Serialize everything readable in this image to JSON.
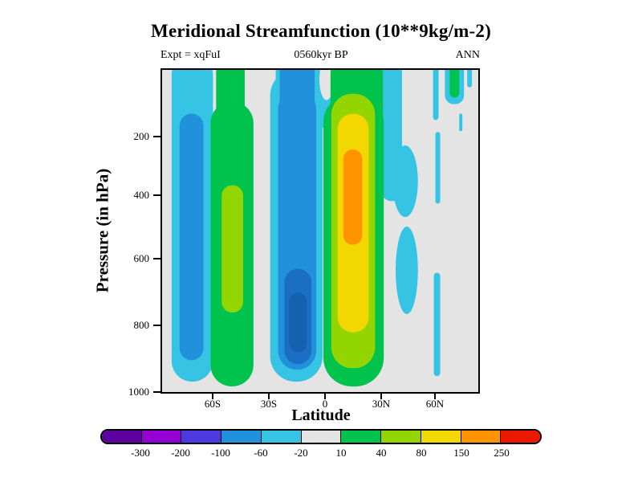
{
  "chart_data": {
    "type": "heatmap",
    "title": "Meridional Streamfunction (10**9kg/m-2)",
    "annotations": {
      "left": "Expt = xqFuI",
      "center": "0560kyr BP",
      "right": "ANN"
    },
    "xlabel": "Latitude",
    "ylabel": "Pressure (in hPa)",
    "x_ticks": [
      "60S",
      "30S",
      "0",
      "30N",
      "60N"
    ],
    "y_ticks": [
      "200",
      "400",
      "600",
      "800",
      "1000"
    ],
    "x_range_deg": [
      -88,
      84
    ],
    "y_range_hpa": [
      0,
      1000
    ],
    "grid": false,
    "legend_position": "bottom-colorbar",
    "colorbar": {
      "levels": [
        "-300",
        "-200",
        "-100",
        "-60",
        "-20",
        "10",
        "40",
        "80",
        "150",
        "250"
      ],
      "colors": [
        "#5d00a0",
        "#9400d3",
        "#4a3ae0",
        "#2191dc",
        "#35c4e4",
        "#e4e4e4",
        "#00c34e",
        "#93d500",
        "#f2d800",
        "#ff9400",
        "#ec1800"
      ]
    },
    "palette": {
      "background_gray": "#e4e4e4",
      "cyan": "#35c4e4",
      "blue": "#2191dc",
      "blue_dark": "#1a6fc4",
      "blue_deep": "#1561b0",
      "green": "#00c34e",
      "yellow_green": "#93d500",
      "yellow": "#f2d800",
      "orange": "#ff9400"
    },
    "field_estimate": {
      "units": "10**9 kg/m-2",
      "lat": [
        -85,
        -75,
        -65,
        -55,
        -45,
        -35,
        -25,
        -15,
        -5,
        5,
        15,
        25,
        35,
        45,
        55,
        65,
        75,
        85
      ],
      "pressure_hpa": [
        150,
        300,
        500,
        700,
        850,
        1000
      ],
      "values": [
        [
          -30,
          -40,
          20,
          25,
          0,
          -25,
          -40,
          -50,
          -30,
          50,
          60,
          -25,
          -15,
          0,
          -15,
          15,
          -15,
          0
        ],
        [
          -35,
          -55,
          30,
          50,
          0,
          -30,
          -60,
          -70,
          -40,
          90,
          160,
          -25,
          -20,
          0,
          -15,
          0,
          0,
          0
        ],
        [
          -40,
          -60,
          40,
          70,
          0,
          -35,
          -70,
          -80,
          -45,
          100,
          140,
          -20,
          -15,
          0,
          -15,
          0,
          0,
          0
        ],
        [
          -40,
          -55,
          45,
          75,
          0,
          -40,
          -85,
          -100,
          -50,
          90,
          110,
          0,
          -15,
          0,
          -15,
          0,
          0,
          0
        ],
        [
          -35,
          -50,
          40,
          60,
          0,
          -45,
          -95,
          -110,
          -55,
          70,
          80,
          0,
          0,
          0,
          -12,
          0,
          0,
          0
        ],
        [
          -15,
          -25,
          15,
          25,
          0,
          -20,
          -40,
          -45,
          -25,
          30,
          35,
          0,
          0,
          0,
          0,
          0,
          0,
          0
        ]
      ]
    }
  }
}
